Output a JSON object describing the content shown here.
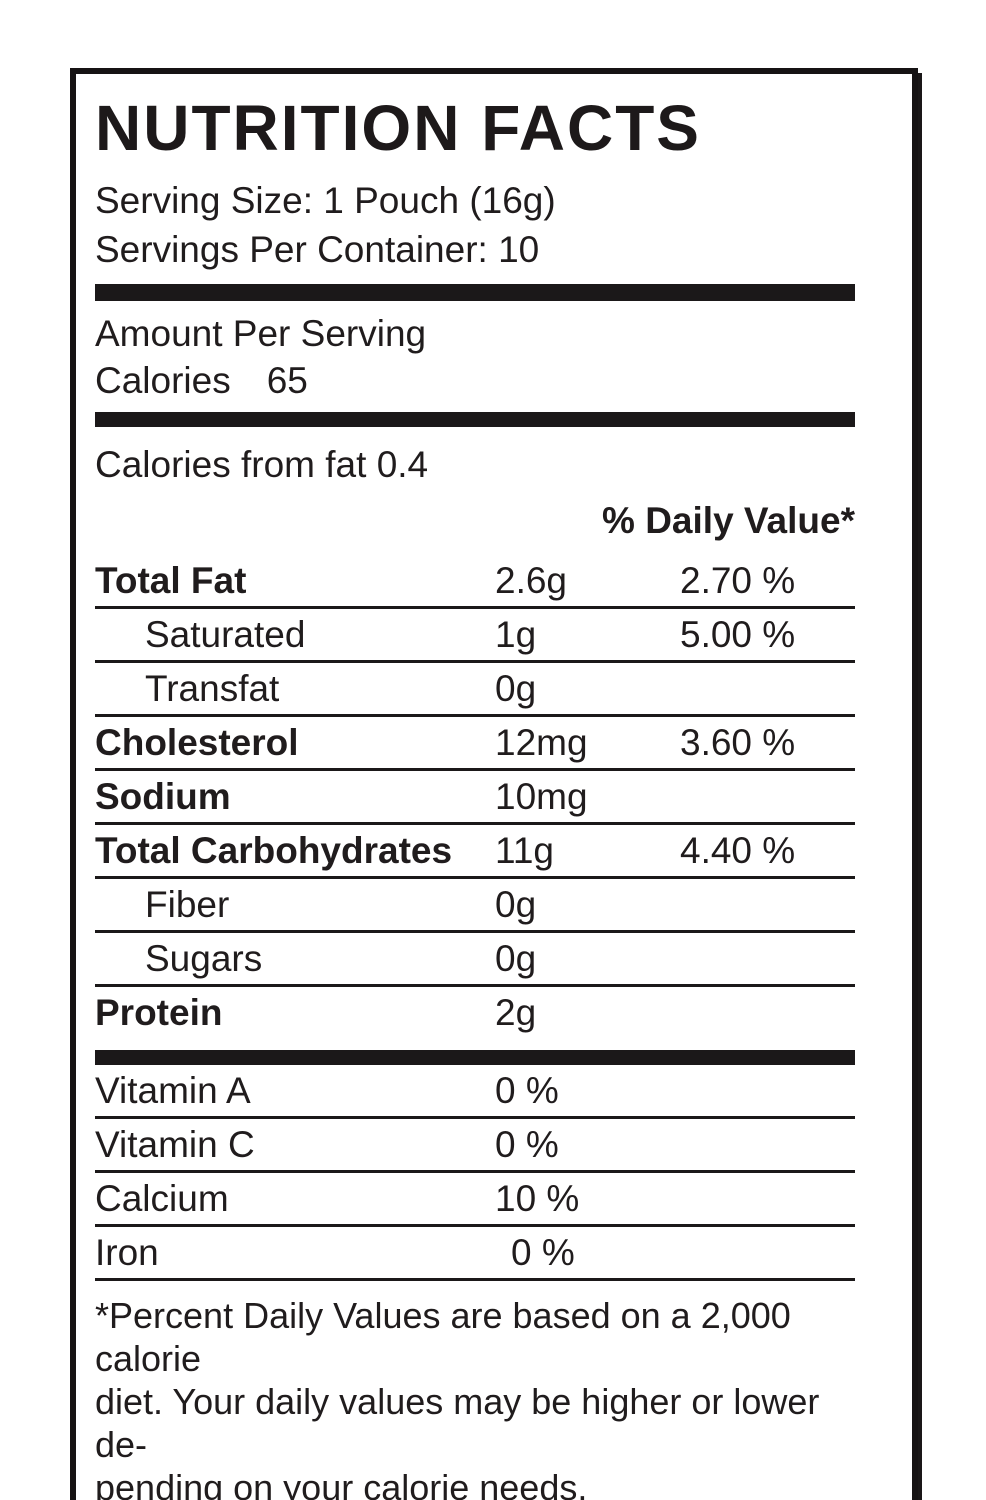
{
  "label": {
    "title": "NUTRITION FACTS",
    "serving_size": "Serving Size: 1 Pouch (16g)",
    "servings_per_container": "Servings Per Container: 10",
    "amount_per_serving": "Amount Per Serving",
    "calories_label": "Calories",
    "calories_value": "65",
    "calories_from_fat": "Calories from fat 0.4",
    "daily_value_header": "% Daily Value*",
    "nutrients": [
      {
        "name": "Total Fat",
        "amount": "2.6g",
        "percent": "2.70 %"
      },
      {
        "name": "Saturated",
        "amount": "1g",
        "percent": "5.00 %"
      },
      {
        "name": "Transfat",
        "amount": "0g",
        "percent": ""
      },
      {
        "name": "Cholesterol",
        "amount": "12mg",
        "percent": "3.60 %"
      },
      {
        "name": "Sodium",
        "amount": "10mg",
        "percent": ""
      },
      {
        "name": "Total Carbohydrates",
        "amount": "11g",
        "percent": "4.40 %"
      },
      {
        "name": "Fiber",
        "amount": "0g",
        "percent": ""
      },
      {
        "name": "Sugars",
        "amount": "0g",
        "percent": ""
      },
      {
        "name": "Protein",
        "amount": "2g",
        "percent": ""
      }
    ],
    "vitamins": [
      {
        "name": "Vitamin A",
        "value": "0 %"
      },
      {
        "name": "Vitamin C",
        "value": "0 %"
      },
      {
        "name": "Calcium",
        "value": "10 %"
      },
      {
        "name": "Iron",
        "value": "0 %"
      }
    ],
    "footnote_lines": [
      "*Percent Daily Values are based on a 2,000 calorie",
      "diet. Your daily values may be higher or lower de-",
      "pending on your calorie needs."
    ],
    "colors": {
      "text": "#201c1d",
      "rule": "#1b1819",
      "border": "#161314",
      "background": "#ffffff"
    }
  }
}
